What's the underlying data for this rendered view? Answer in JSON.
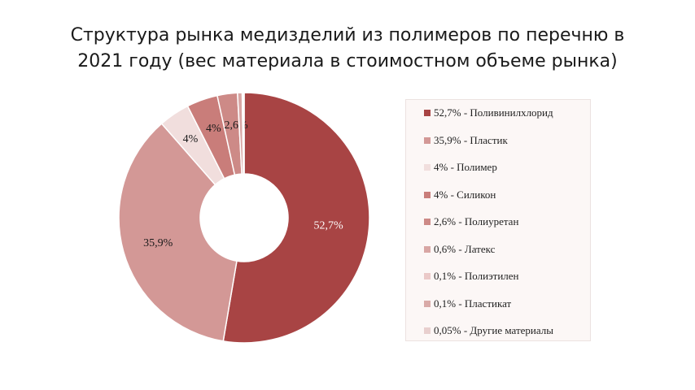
{
  "title_line1": "Структура рынка медизделий из полимеров по перечню в",
  "title_line2": "2021 году (вес материала в стоимостном объеме рынка)",
  "chart_data": {
    "type": "pie",
    "title": "Структура рынка медизделий из полимеров по перечню в 2021 году (вес материала в стоимостном объеме рынка)",
    "legend_position": "right",
    "slices": [
      {
        "name": "Поливинилхлорид",
        "value": 52.7,
        "legend": "52,7% -  Поливинилхлорид",
        "data_label": "52,7%",
        "color": "#a84444"
      },
      {
        "name": "Пластик",
        "value": 35.9,
        "legend": "35,9% -  Пластик",
        "data_label": "35,9%",
        "color": "#d39896"
      },
      {
        "name": "Полимер",
        "value": 4,
        "legend": "4% -  Полимер",
        "data_label": "4%",
        "color": "#f1dedd"
      },
      {
        "name": "Силикон",
        "value": 4,
        "legend": "4% -  Силикон",
        "data_label": "4%",
        "color": "#c97d7a"
      },
      {
        "name": "Полиуретан",
        "value": 2.6,
        "legend": "2,6% -  Полиуретан",
        "data_label": "2,6%",
        "color": "#cd8a87"
      },
      {
        "name": "Латекс",
        "value": 0.6,
        "legend": "0,6% -  Латекс",
        "data_label": "",
        "color": "#d8a6a4"
      },
      {
        "name": "Полиэтилен",
        "value": 0.1,
        "legend": "0,1% -  Полиэтилен",
        "data_label": "",
        "color": "#ebc9c8"
      },
      {
        "name": "Пластикат",
        "value": 0.1,
        "legend": "0,1% -  Пластикат",
        "data_label": "",
        "color": "#d9aaa8"
      },
      {
        "name": "Другие материалы",
        "value": 0.05,
        "legend": "0,05% -  Другие материалы",
        "data_label": "",
        "color": "#e8cfce"
      }
    ]
  }
}
